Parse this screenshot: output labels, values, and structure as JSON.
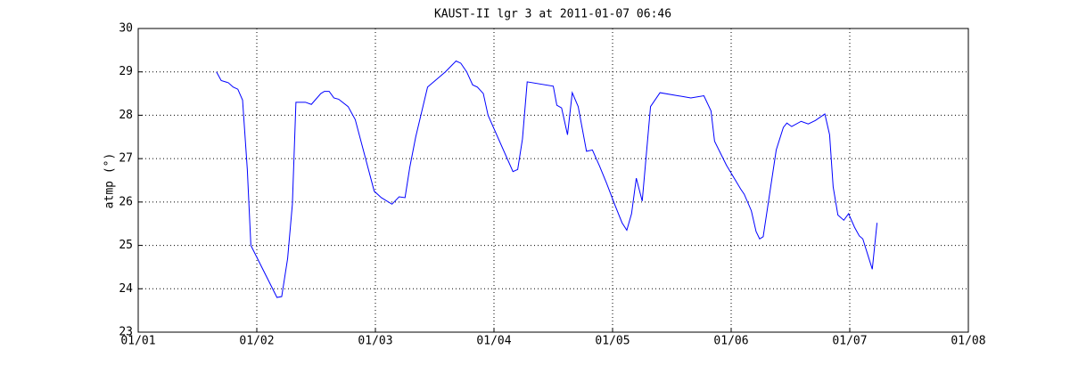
{
  "chart_data": {
    "type": "line",
    "title": "KAUST-II lgr 3 at 2011-01-07 06:46",
    "y_label": "atmp (°)",
    "x": [
      0.66,
      0.7,
      0.76,
      0.8,
      0.84,
      0.88,
      0.92,
      0.95,
      1.17,
      1.21,
      1.26,
      1.3,
      1.33,
      1.41,
      1.46,
      1.54,
      1.57,
      1.61,
      1.65,
      1.69,
      1.77,
      1.83,
      1.99,
      2.05,
      2.14,
      2.2,
      2.25,
      2.29,
      2.34,
      2.44,
      2.59,
      2.68,
      2.72,
      2.77,
      2.82,
      2.86,
      2.91,
      2.95,
      3.16,
      3.2,
      3.24,
      3.28,
      3.5,
      3.53,
      3.57,
      3.62,
      3.66,
      3.71,
      3.78,
      3.83,
      3.89,
      3.95,
      4.02,
      4.08,
      4.12,
      4.16,
      4.2,
      4.25,
      4.32,
      4.4,
      4.66,
      4.77,
      4.83,
      4.86,
      4.96,
      5.08,
      5.11,
      5.17,
      5.21,
      5.24,
      5.27,
      5.38,
      5.44,
      5.47,
      5.51,
      5.59,
      5.65,
      5.71,
      5.79,
      5.83,
      5.86,
      5.9,
      5.95,
      5.99,
      6.04,
      6.08,
      6.11,
      6.15,
      6.19,
      6.23
    ],
    "series": [
      {
        "color": "#0000ff",
        "values": [
          29.0,
          28.8,
          28.75,
          28.65,
          28.6,
          28.35,
          26.75,
          25.0,
          23.8,
          23.82,
          24.7,
          25.95,
          28.3,
          28.3,
          28.25,
          28.5,
          28.55,
          28.55,
          28.4,
          28.37,
          28.2,
          27.9,
          26.25,
          26.1,
          25.95,
          26.12,
          26.1,
          26.8,
          27.5,
          28.65,
          29.0,
          29.25,
          29.2,
          29.0,
          28.7,
          28.65,
          28.5,
          28.0,
          26.7,
          26.75,
          27.45,
          28.77,
          28.67,
          28.23,
          28.17,
          27.55,
          28.52,
          28.2,
          27.17,
          27.2,
          26.83,
          26.43,
          25.93,
          25.52,
          25.35,
          25.73,
          26.55,
          26.02,
          28.2,
          28.52,
          28.4,
          28.45,
          28.1,
          27.4,
          26.85,
          26.3,
          26.18,
          25.8,
          25.32,
          25.15,
          25.2,
          27.2,
          27.72,
          27.82,
          27.74,
          27.86,
          27.8,
          27.88,
          28.03,
          27.55,
          26.35,
          25.7,
          25.58,
          25.73,
          25.42,
          25.22,
          25.15,
          24.8,
          24.45,
          25.52
        ]
      }
    ],
    "xlim": [
      0,
      7
    ],
    "xticks": [
      {
        "value": 0,
        "label": "01/01"
      },
      {
        "value": 1,
        "label": "01/02"
      },
      {
        "value": 2,
        "label": "01/03"
      },
      {
        "value": 3,
        "label": "01/04"
      },
      {
        "value": 4,
        "label": "01/05"
      },
      {
        "value": 5,
        "label": "01/06"
      },
      {
        "value": 6,
        "label": "01/07"
      },
      {
        "value": 7,
        "label": "01/08"
      }
    ],
    "ylim": [
      23,
      30
    ],
    "yticks": [
      23,
      24,
      25,
      26,
      27,
      28,
      29,
      30
    ],
    "grid": true
  }
}
